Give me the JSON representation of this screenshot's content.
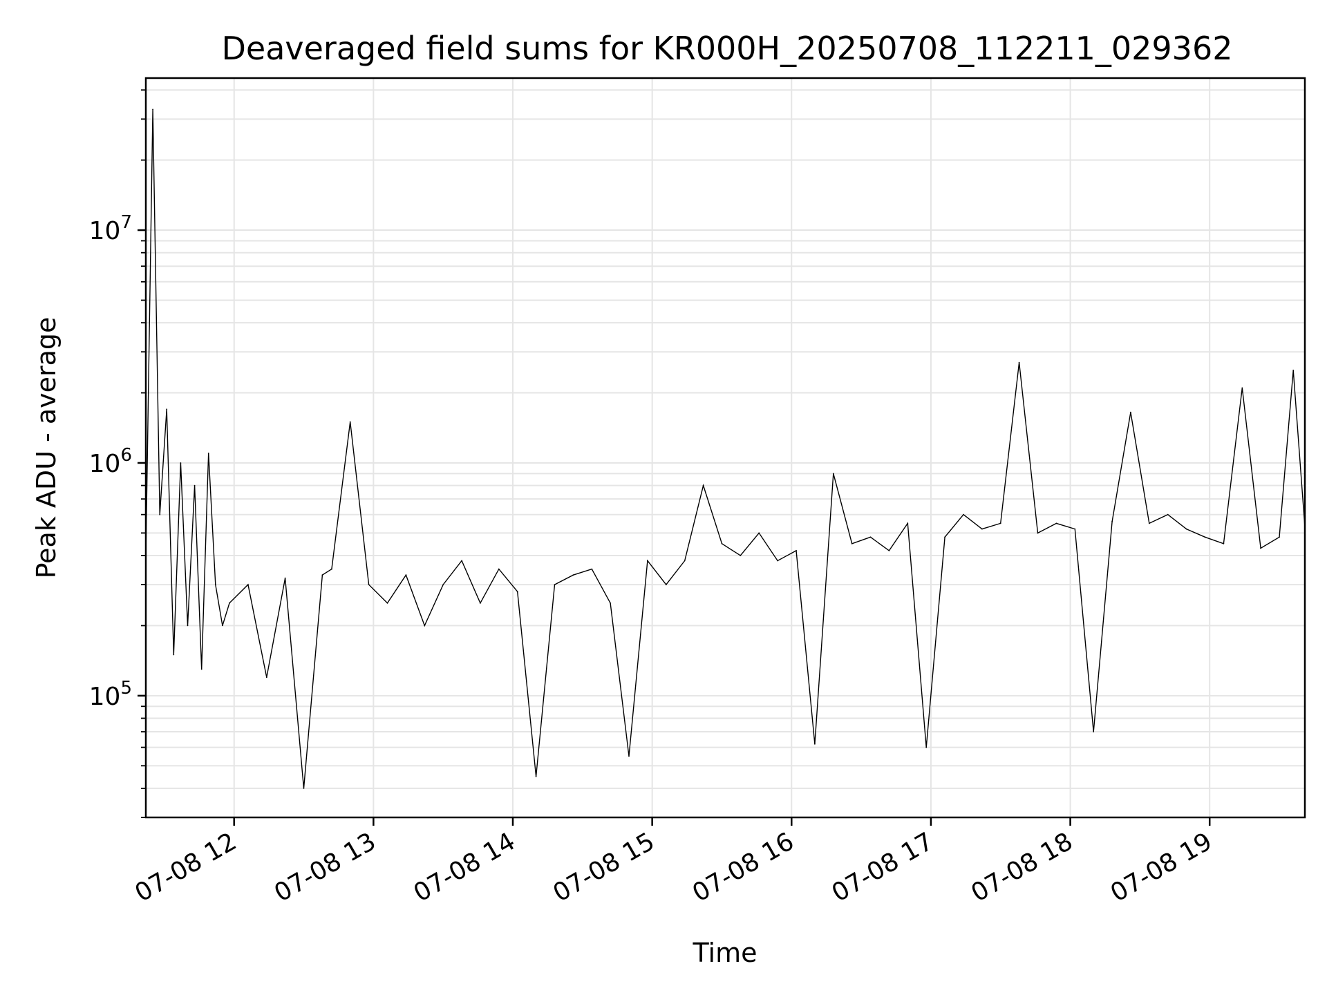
{
  "chart_data": {
    "type": "line",
    "title": "Deaveraged field sums for KR000H_20250708_112211_029362",
    "xlabel": "Time",
    "ylabel": "Peak ADU - average",
    "y_scale": "log",
    "ylim": [
      30000,
      45000000
    ],
    "xlim": [
      "2025-07-08 11:22",
      "2025-07-08 19:41"
    ],
    "x_ticks": [
      {
        "value": "2025-07-08 12:00",
        "label": "07-08 12"
      },
      {
        "value": "2025-07-08 13:00",
        "label": "07-08 13"
      },
      {
        "value": "2025-07-08 14:00",
        "label": "07-08 14"
      },
      {
        "value": "2025-07-08 15:00",
        "label": "07-08 15"
      },
      {
        "value": "2025-07-08 16:00",
        "label": "07-08 16"
      },
      {
        "value": "2025-07-08 17:00",
        "label": "07-08 17"
      },
      {
        "value": "2025-07-08 18:00",
        "label": "07-08 18"
      },
      {
        "value": "2025-07-08 19:00",
        "label": "07-08 19"
      }
    ],
    "y_ticks": [
      {
        "value": 100000,
        "base": "10",
        "exp": "5"
      },
      {
        "value": 1000000,
        "base": "10",
        "exp": "6"
      },
      {
        "value": 10000000,
        "base": "10",
        "exp": "7"
      }
    ],
    "grid": true,
    "line_color": "#000000",
    "grid_color": "#e5e5e5",
    "x": [
      "2025-07-08 11:22",
      "2025-07-08 11:25",
      "2025-07-08 11:28",
      "2025-07-08 11:31",
      "2025-07-08 11:34",
      "2025-07-08 11:37",
      "2025-07-08 11:40",
      "2025-07-08 11:43",
      "2025-07-08 11:46",
      "2025-07-08 11:49",
      "2025-07-08 11:52",
      "2025-07-08 11:55",
      "2025-07-08 11:58",
      "2025-07-08 12:06",
      "2025-07-08 12:14",
      "2025-07-08 12:22",
      "2025-07-08 12:30",
      "2025-07-08 12:38",
      "2025-07-08 12:42",
      "2025-07-08 12:50",
      "2025-07-08 12:58",
      "2025-07-08 13:06",
      "2025-07-08 13:14",
      "2025-07-08 13:22",
      "2025-07-08 13:30",
      "2025-07-08 13:38",
      "2025-07-08 13:46",
      "2025-07-08 13:54",
      "2025-07-08 14:02",
      "2025-07-08 14:10",
      "2025-07-08 14:18",
      "2025-07-08 14:26",
      "2025-07-08 14:34",
      "2025-07-08 14:42",
      "2025-07-08 14:50",
      "2025-07-08 14:58",
      "2025-07-08 15:06",
      "2025-07-08 15:14",
      "2025-07-08 15:22",
      "2025-07-08 15:30",
      "2025-07-08 15:38",
      "2025-07-08 15:46",
      "2025-07-08 15:54",
      "2025-07-08 16:02",
      "2025-07-08 16:10",
      "2025-07-08 16:18",
      "2025-07-08 16:26",
      "2025-07-08 16:34",
      "2025-07-08 16:42",
      "2025-07-08 16:50",
      "2025-07-08 16:58",
      "2025-07-08 17:06",
      "2025-07-08 17:14",
      "2025-07-08 17:22",
      "2025-07-08 17:30",
      "2025-07-08 17:38",
      "2025-07-08 17:46",
      "2025-07-08 17:54",
      "2025-07-08 18:02",
      "2025-07-08 18:10",
      "2025-07-08 18:18",
      "2025-07-08 18:26",
      "2025-07-08 18:34",
      "2025-07-08 18:42",
      "2025-07-08 18:50",
      "2025-07-08 18:58",
      "2025-07-08 19:06",
      "2025-07-08 19:14",
      "2025-07-08 19:22",
      "2025-07-08 19:30",
      "2025-07-08 19:36",
      "2025-07-08 19:41"
    ],
    "y": [
      400000,
      33000000,
      600000,
      1700000,
      150000,
      1000000,
      200000,
      800000,
      130000,
      1100000,
      300000,
      200000,
      250000,
      300000,
      120000,
      320000,
      40000,
      330000,
      350000,
      1500000,
      300000,
      250000,
      330000,
      200000,
      300000,
      380000,
      250000,
      350000,
      280000,
      45000,
      300000,
      330000,
      350000,
      250000,
      55000,
      380000,
      300000,
      380000,
      800000,
      450000,
      400000,
      500000,
      380000,
      420000,
      62000,
      900000,
      450000,
      480000,
      420000,
      550000,
      60000,
      480000,
      600000,
      520000,
      550000,
      2700000,
      500000,
      550000,
      520000,
      70000,
      560000,
      1650000,
      550000,
      600000,
      520000,
      480000,
      450000,
      2100000,
      430000,
      480000,
      2500000,
      530000
    ]
  }
}
